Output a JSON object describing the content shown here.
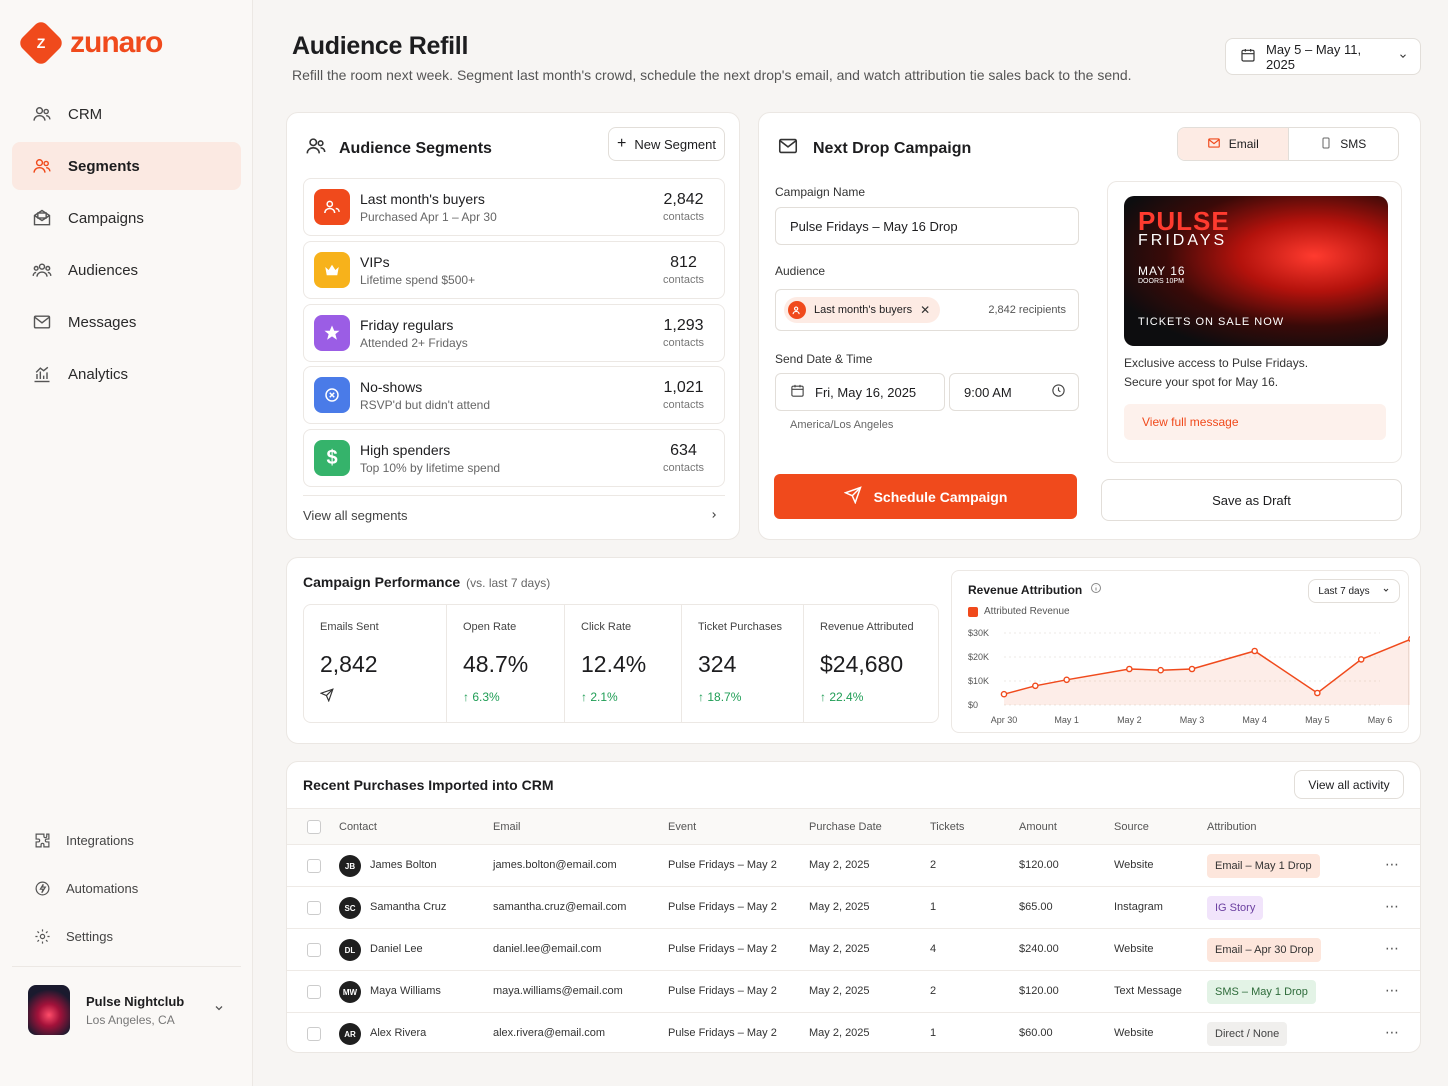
{
  "app": {
    "logo_text": "zunaro",
    "logo_mark": "Z"
  },
  "sidebar": {
    "items": [
      {
        "label": "CRM",
        "icon": "users-icon"
      },
      {
        "label": "Segments",
        "icon": "users-icon",
        "active": true
      },
      {
        "label": "Campaigns",
        "icon": "mail-open-icon"
      },
      {
        "label": "Audiences",
        "icon": "group-icon"
      },
      {
        "label": "Messages",
        "icon": "envelope-icon"
      },
      {
        "label": "Analytics",
        "icon": "bar-chart-icon"
      }
    ],
    "secondary": [
      {
        "label": "Integrations",
        "icon": "puzzle-icon"
      },
      {
        "label": "Automations",
        "icon": "lightning-icon"
      },
      {
        "label": "Settings",
        "icon": "gear-icon"
      }
    ],
    "profile": {
      "name": "Pulse Nightclub",
      "location": "Los Angeles, CA"
    }
  },
  "header": {
    "title": "Audience Refill",
    "subtitle": "Refill the room next week. Segment last month's crowd, schedule the next drop's email, and watch attribution tie sales back to the send.",
    "date_range": "May 5 – May 11, 2025"
  },
  "segments": {
    "title": "Audience Segments",
    "new_button": "New Segment",
    "view_all": "View all segments",
    "items": [
      {
        "name": "Last month's buyers",
        "desc": "Purchased Apr 1 – Apr 30",
        "count": "2,842",
        "unit": "contacts",
        "color": "#f04a1c",
        "icon": "users-icon"
      },
      {
        "name": "VIPs",
        "desc": "Lifetime spend $500+",
        "count": "812",
        "unit": "contacts",
        "color": "#f7b21b",
        "icon": "crown-icon"
      },
      {
        "name": "Friday regulars",
        "desc": "Attended 2+ Fridays",
        "count": "1,293",
        "unit": "contacts",
        "color": "#9b5de5",
        "icon": "star-icon"
      },
      {
        "name": "No-shows",
        "desc": "RSVP'd but didn't attend",
        "count": "1,021",
        "unit": "contacts",
        "color": "#4a7be8",
        "icon": "x-circle-icon"
      },
      {
        "name": "High spenders",
        "desc": "Top 10% by lifetime spend",
        "count": "634",
        "unit": "contacts",
        "color": "#35b36b",
        "icon": "dollar-icon"
      }
    ]
  },
  "campaign": {
    "title": "Next Drop Campaign",
    "tabs": [
      "Email",
      "SMS"
    ],
    "name_label": "Campaign Name",
    "name_value": "Pulse Fridays – May 16 Drop",
    "audience_label": "Audience",
    "audience_chip": "Last month's buyers",
    "recipients": "2,842 recipients",
    "send_label": "Send Date & Time",
    "send_date": "Fri, May 16, 2025",
    "send_time": "9:00 AM",
    "timezone": "America/Los Angeles",
    "schedule_button": "Schedule Campaign",
    "draft_button": "Save as Draft",
    "preview": {
      "brand": "PULSE",
      "brand2": "FRIDAYS",
      "date": "MAY 16",
      "doors": "DOORS 10PM",
      "cta": "TICKETS ON SALE NOW",
      "body1": "Exclusive access to Pulse Fridays.",
      "body2": "Secure your spot for May 16.",
      "link": "View full message"
    }
  },
  "performance": {
    "title": "Campaign Performance",
    "subtitle": "(vs. last 7 days)",
    "kpis": [
      {
        "label": "Emails Sent",
        "value": "2,842",
        "delta": ""
      },
      {
        "label": "Open Rate",
        "value": "48.7%",
        "delta": "6.3%"
      },
      {
        "label": "Click Rate",
        "value": "12.4%",
        "delta": "2.1%"
      },
      {
        "label": "Ticket Purchases",
        "value": "324",
        "delta": "18.7%"
      },
      {
        "label": "Revenue Attributed",
        "value": "$24,680",
        "delta": "22.4%"
      }
    ]
  },
  "revenue": {
    "title": "Revenue Attribution",
    "range": "Last 7 days",
    "legend": "Attributed Revenue",
    "accent": "#f04a1c"
  },
  "chart_data": {
    "type": "area",
    "title": "Revenue Attribution",
    "categories": [
      "Apr 30",
      "May 1",
      "May 2",
      "May 3",
      "May 4",
      "May 5",
      "May 6"
    ],
    "y_ticks": [
      "$0",
      "$10K",
      "$20K",
      "$30K"
    ],
    "ylim": [
      0,
      30000
    ],
    "series": [
      {
        "name": "Attributed Revenue",
        "x": [
          0,
          0.5,
          1,
          2,
          2.5,
          3,
          4,
          5,
          5.7,
          6.5
        ],
        "values": [
          4500,
          8000,
          10500,
          15000,
          14500,
          15000,
          22500,
          5000,
          19000,
          27500
        ]
      }
    ]
  },
  "purchases": {
    "title": "Recent Purchases Imported into CRM",
    "view_all": "View all activity",
    "columns": [
      "Contact",
      "Email",
      "Event",
      "Purchase Date",
      "Tickets",
      "Amount",
      "Source",
      "Attribution"
    ],
    "rows": [
      {
        "initials": "JB",
        "name": "James Bolton",
        "email": "james.bolton@email.com",
        "event": "Pulse Fridays – May 2",
        "date": "May 2, 2025",
        "tickets": "2",
        "amount": "$120.00",
        "source": "Website",
        "attribution": "Email – May 1 Drop",
        "attr_type": "email"
      },
      {
        "initials": "SC",
        "name": "Samantha Cruz",
        "email": "samantha.cruz@email.com",
        "event": "Pulse Fridays – May 2",
        "date": "May 2, 2025",
        "tickets": "1",
        "amount": "$65.00",
        "source": "Instagram",
        "attribution": "IG Story",
        "attr_type": "ig"
      },
      {
        "initials": "DL",
        "name": "Daniel Lee",
        "email": "daniel.lee@email.com",
        "event": "Pulse Fridays – May 2",
        "date": "May 2, 2025",
        "tickets": "4",
        "amount": "$240.00",
        "source": "Website",
        "attribution": "Email – Apr 30 Drop",
        "attr_type": "email"
      },
      {
        "initials": "MW",
        "name": "Maya Williams",
        "email": "maya.williams@email.com",
        "event": "Pulse Fridays – May 2",
        "date": "May 2, 2025",
        "tickets": "2",
        "amount": "$120.00",
        "source": "Text Message",
        "attribution": "SMS – May 1 Drop",
        "attr_type": "sms"
      },
      {
        "initials": "AR",
        "name": "Alex Rivera",
        "email": "alex.rivera@email.com",
        "event": "Pulse Fridays – May 2",
        "date": "May 2, 2025",
        "tickets": "1",
        "amount": "$60.00",
        "source": "Website",
        "attribution": "Direct / None",
        "attr_type": "direct"
      }
    ]
  }
}
